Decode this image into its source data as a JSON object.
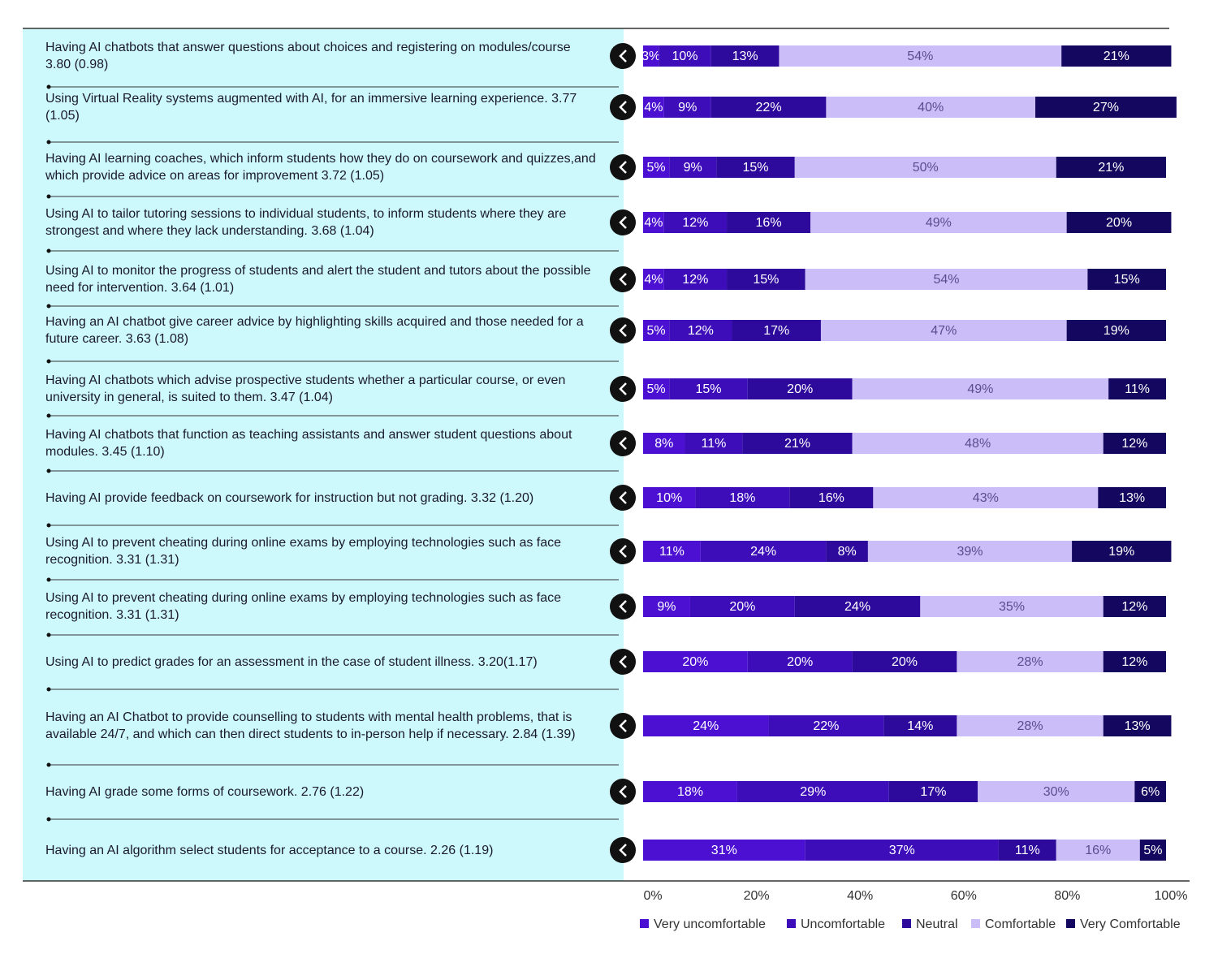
{
  "chart_data": {
    "type": "bar",
    "orientation": "horizontal",
    "stacked": true,
    "categories": [
      "Having AI chatbots that answer questions about choices and registering on modules/course 3.80 (0.98)",
      "Using Virtual Reality systems augmented with AI, for an immersive learning experience. 3.77 (1.05)",
      "Having AI learning coaches, which inform students how they do on coursework and quizzes,and which provide advice on areas for improvement 3.72 (1.05)",
      "Using AI to tailor tutoring sessions to individual students, to inform students where they are strongest and where they lack understanding. 3.68 (1.04)",
      "Using AI to monitor the progress of students and alert the student and tutors about the possible need for intervention. 3.64 (1.01)",
      "Having an AI chatbot give career advice by highlighting skills acquired and those needed for a future career. 3.63 (1.08)",
      "Having AI chatbots which advise prospective students whether a particular course, or even university in general, is suited to them. 3.47 (1.04)",
      "Having AI chatbots that function as teaching assistants and answer student questions about modules. 3.45 (1.10)",
      "Having AI provide feedback on coursework for instruction but not grading. 3.32 (1.20)",
      "Using AI to prevent cheating during online exams by employing technologies such as face recognition. 3.31 (1.31)",
      "Using AI to prevent cheating during online exams by employing technologies such as face recognition. 3.31 (1.31)",
      "Using AI to predict grades for an assessment in the case of student illness. 3.20(1.17)",
      "Having an AI Chatbot to provide counselling to students with mental health problems, that is available 24/7, and which can then direct students to in-person help if necessary. 2.84 (1.39)",
      "Having AI grade some forms of coursework. 2.76 (1.22)",
      "Having an AI algorithm select students for acceptance to a course. 2.26 (1.19)"
    ],
    "series": [
      {
        "name": "Very uncomfortable",
        "color": "#4b10d2",
        "values": [
          3,
          4,
          5,
          4,
          4,
          5,
          5,
          8,
          10,
          11,
          9,
          20,
          24,
          18,
          31
        ],
        "value_labels": [
          "3%",
          "4%",
          "5%",
          "4%",
          "4%",
          "5%",
          "5%",
          "8%",
          "10%",
          "11%",
          "9%",
          "20%",
          "24%",
          "18%",
          "31%"
        ]
      },
      {
        "name": "Uncomfortable",
        "color": "#3c0db9",
        "values": [
          10,
          9,
          9,
          12,
          12,
          12,
          15,
          11,
          18,
          24,
          20,
          20,
          22,
          29,
          37
        ],
        "value_labels": [
          "10%",
          "9%",
          "9%",
          "12%",
          "12%",
          "12%",
          "15%",
          "11%",
          "18%",
          "24%",
          "20%",
          "20%",
          "22%",
          "29%",
          "37%"
        ]
      },
      {
        "name": "Neutral",
        "color": "#2d0a9c",
        "values": [
          13,
          22,
          15,
          16,
          15,
          17,
          20,
          21,
          16,
          8,
          24,
          20,
          14,
          17,
          11
        ],
        "value_labels": [
          "13%",
          "22%",
          "15%",
          "16%",
          "15%",
          "17%",
          "20%",
          "21%",
          "16%",
          "8%",
          "24%",
          "20%",
          "14%",
          "17%",
          "11%"
        ]
      },
      {
        "name": "Comfortable",
        "color": "#cbbdf7",
        "values": [
          54,
          40,
          50,
          49,
          54,
          47,
          49,
          48,
          43,
          39,
          35,
          28,
          28,
          30,
          16
        ],
        "value_labels": [
          "54%",
          "40%",
          "50%",
          "49%",
          "54%",
          "47%",
          "49%",
          "48%",
          "43%",
          "39%",
          "35%",
          "28%",
          "28%",
          "30%",
          "16%"
        ]
      },
      {
        "name": "Very Comfortable",
        "color": "#14075f",
        "values": [
          21,
          27,
          21,
          20,
          15,
          19,
          11,
          12,
          13,
          19,
          12,
          12,
          13,
          6,
          5
        ],
        "value_labels": [
          "21%",
          "27%",
          "21%",
          "20%",
          "15%",
          "19%",
          "11%",
          "12%",
          "13%",
          "19%",
          "12%",
          "12%",
          "13%",
          "6%",
          "5%"
        ]
      }
    ],
    "xlim": [
      0,
      100
    ],
    "xticks": [
      {
        "value": 0,
        "label": "0%"
      },
      {
        "value": 20,
        "label": "20%"
      },
      {
        "value": 40,
        "label": "40%"
      },
      {
        "value": 60,
        "label": "60%"
      },
      {
        "value": 80,
        "label": "80%"
      },
      {
        "value": 100,
        "label": "100%"
      }
    ]
  }
}
